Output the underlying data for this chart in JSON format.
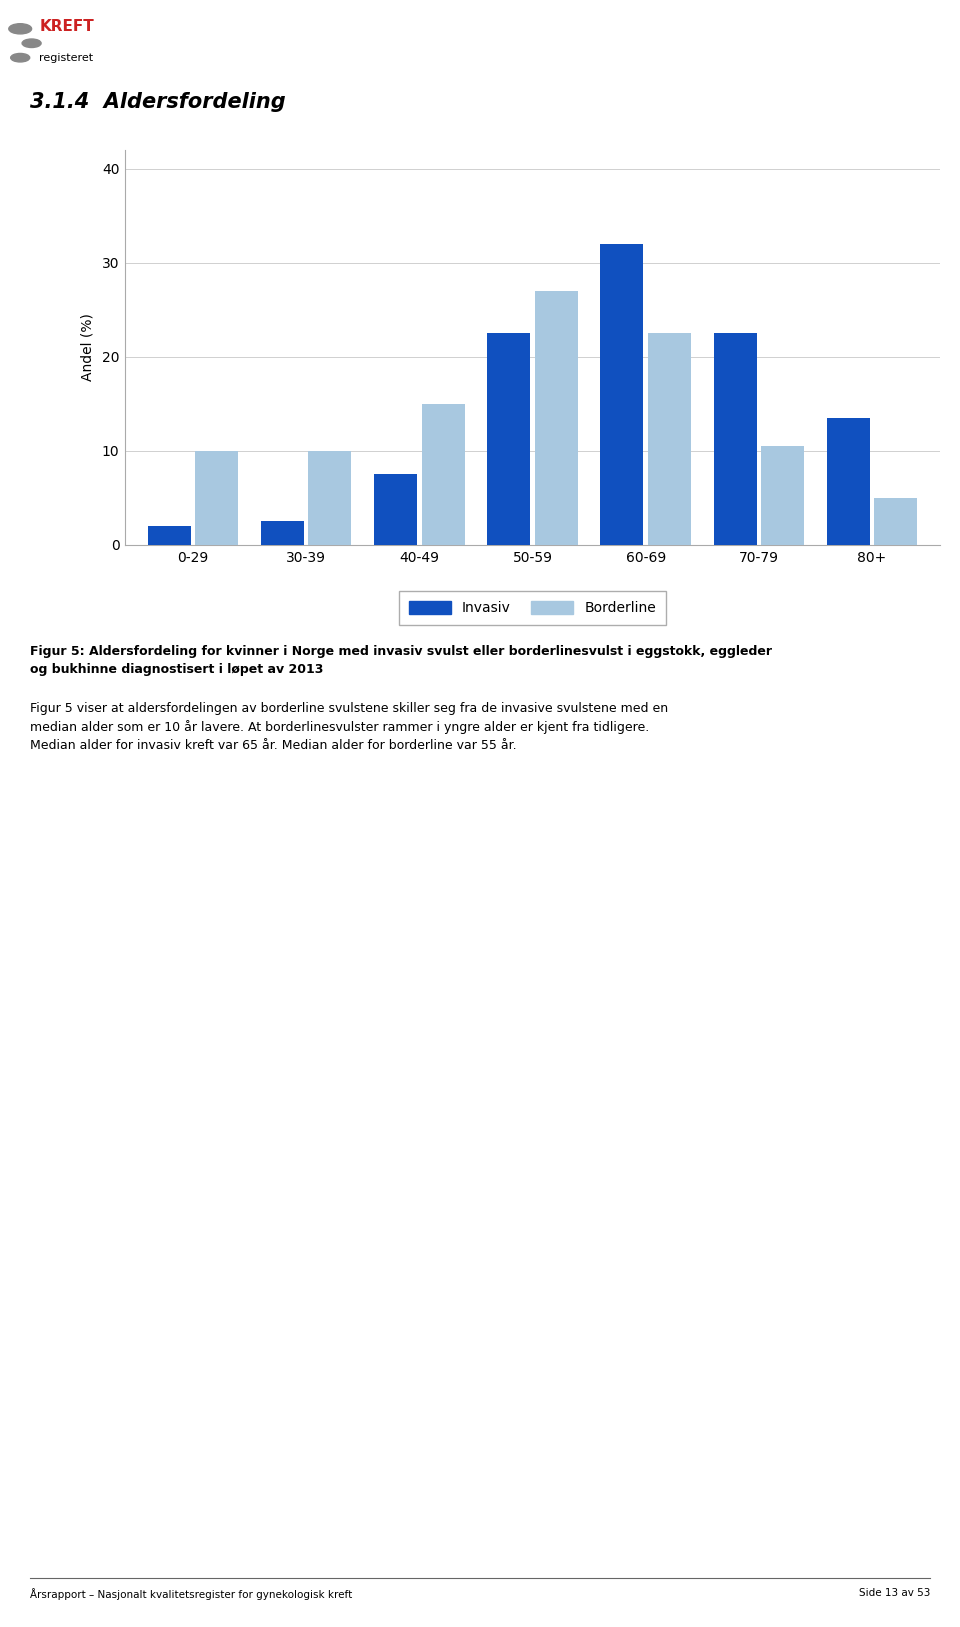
{
  "section_title": "3.1.4  Aldersfordeling",
  "categories": [
    "0-29",
    "30-39",
    "40-49",
    "50-59",
    "60-69",
    "70-79",
    "80+"
  ],
  "invasiv": [
    2.0,
    2.5,
    7.5,
    22.5,
    32.0,
    22.5,
    13.5
  ],
  "borderline": [
    10.0,
    10.0,
    15.0,
    27.0,
    22.5,
    10.5,
    5.0
  ],
  "invasiv_color": "#1050BF",
  "borderline_color": "#A8C8E0",
  "ylabel": "Andel (%)",
  "ylim": [
    0,
    42
  ],
  "yticks": [
    0,
    10,
    20,
    30,
    40
  ],
  "legend_labels": [
    "Invasiv",
    "Borderline"
  ],
  "caption_bold": "Figur 5: Aldersfordeling for kvinner i Norge med invasiv svulst eller borderlinesvulst i eggstokk, eggleder\nog bukhinne diagnostisert i løpet av 2013",
  "caption_text": "Figur 5 viser at aldersfordelingen av borderline svulstene skiller seg fra de invasive svulstene med en\nmedian alder som er 10 år lavere. At borderlinesvulster rammer i yngre alder er kjent fra tidligere.\nMedian alder for invasiv kreft var 65 år. Median alder for borderline var 55 år.",
  "footer_left": "Årsrapport – Nasjonalt kvalitetsregister for gynekologisk kreft",
  "footer_right": "Side 13 av 53",
  "background_color": "#ffffff",
  "grid_color": "#d0d0d0",
  "bar_width": 0.38,
  "logo_text1": "KREFT",
  "logo_text2": "registeret"
}
